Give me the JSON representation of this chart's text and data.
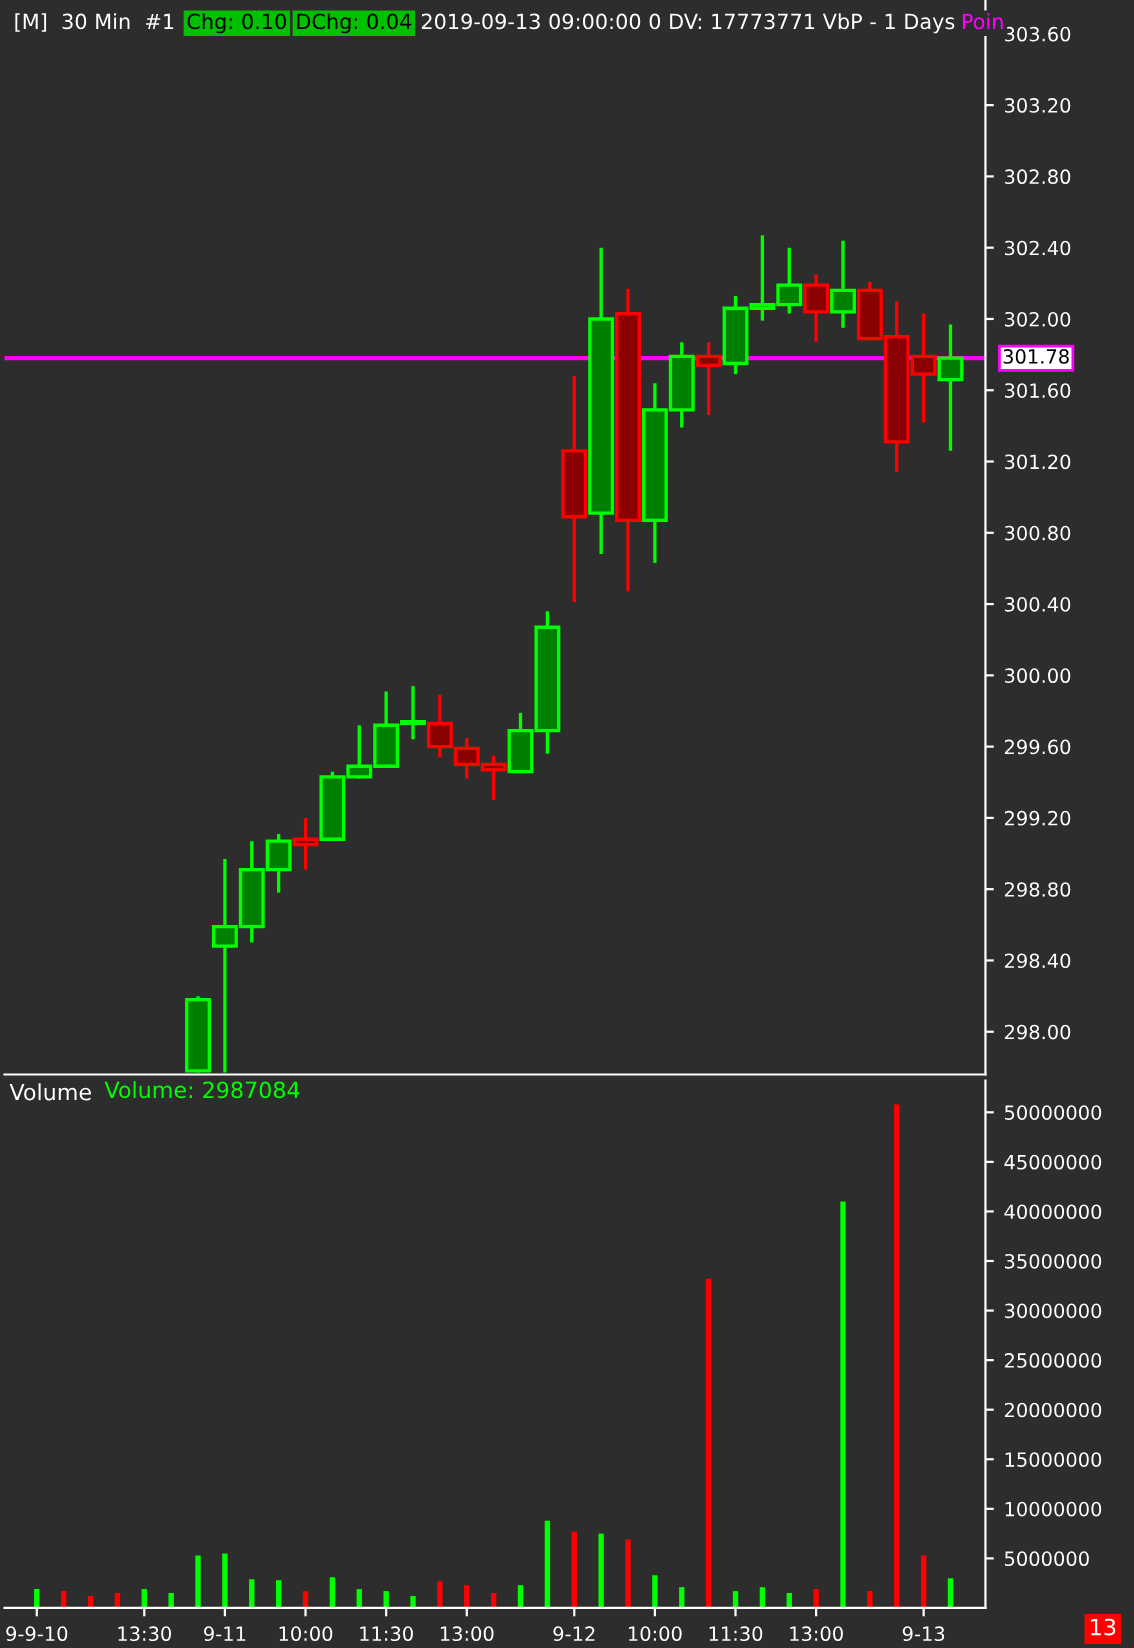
{
  "chart_data": [
    {
      "type": "candlestick",
      "title": "[M]  30 Min  #1",
      "annotations": [
        "Chg: 0.10",
        "DChg: 0.04",
        "2019-09-13 09:00:00 0 DV: 17773771 VbP - 1 Days",
        "Poin",
        "13"
      ],
      "ohlc": [
        null,
        null,
        null,
        null,
        null,
        null,
        [
          297.78,
          298.19,
          297.78,
          298.18
        ],
        [
          298.48,
          298.96,
          297.78,
          298.59
        ],
        [
          298.59,
          299.06,
          298.51,
          298.91
        ],
        [
          298.91,
          299.1,
          298.79,
          299.07
        ],
        [
          299.08,
          299.19,
          298.92,
          299.05
        ],
        [
          299.08,
          299.45,
          299.08,
          299.43
        ],
        [
          299.43,
          299.71,
          299.43,
          299.49
        ],
        [
          299.49,
          299.9,
          299.49,
          299.72
        ],
        [
          299.73,
          299.93,
          299.65,
          299.74
        ],
        [
          299.73,
          299.88,
          299.55,
          299.6
        ],
        [
          299.59,
          299.64,
          299.43,
          299.5
        ],
        [
          299.5,
          299.54,
          299.31,
          299.47
        ],
        [
          299.46,
          299.78,
          299.46,
          299.69
        ],
        [
          299.69,
          300.35,
          299.57,
          300.27
        ],
        [
          301.26,
          301.67,
          300.42,
          300.89
        ],
        [
          300.91,
          302.39,
          300.69,
          302.0
        ],
        [
          302.03,
          302.16,
          300.48,
          300.87
        ],
        [
          300.87,
          301.63,
          300.64,
          301.49
        ],
        [
          301.49,
          301.86,
          301.4,
          301.79
        ],
        [
          301.79,
          301.86,
          301.47,
          301.74
        ],
        [
          301.75,
          302.12,
          301.7,
          302.06
        ],
        [
          302.06,
          302.46,
          302.0,
          302.08
        ],
        [
          302.08,
          302.39,
          302.04,
          302.19
        ],
        [
          302.19,
          302.24,
          301.88,
          302.04
        ],
        [
          302.04,
          302.43,
          301.96,
          302.16
        ],
        [
          302.16,
          302.2,
          301.89,
          301.89
        ],
        [
          301.9,
          302.09,
          301.15,
          301.31
        ],
        [
          301.79,
          302.02,
          301.43,
          301.69
        ],
        [
          301.66,
          301.96,
          301.27,
          301.78
        ]
      ],
      "ylim": [
        297.76,
        303.79
      ],
      "yticks": [
        {
          "value": 298.0,
          "label": "298.00"
        },
        {
          "value": 298.4,
          "label": "298.40"
        },
        {
          "value": 298.8,
          "label": "298.80"
        },
        {
          "value": 299.2,
          "label": "299.20"
        },
        {
          "value": 299.6,
          "label": "299.60"
        },
        {
          "value": 300.0,
          "label": "300.00"
        },
        {
          "value": 300.4,
          "label": "300.40"
        },
        {
          "value": 300.8,
          "label": "300.80"
        },
        {
          "value": 301.2,
          "label": "301.20"
        },
        {
          "value": 301.6,
          "label": "301.60"
        },
        {
          "value": 302.0,
          "label": "302.00"
        },
        {
          "value": 302.4,
          "label": "302.40"
        },
        {
          "value": 302.8,
          "label": "302.80"
        },
        {
          "value": 303.2,
          "label": "303.20"
        },
        {
          "value": 303.6,
          "label": "303.60"
        }
      ],
      "ref_lines": [
        {
          "axis": "y",
          "value": 301.78,
          "label": "301.78",
          "color": "#ff00ff"
        }
      ],
      "tick_labels": "y",
      "grid": false
    },
    {
      "type": "bar",
      "title": "Volume",
      "annotations": [
        "Volume: 2987084"
      ],
      "categories": [
        "9-9-10",
        null,
        null,
        null,
        "13:30",
        null,
        null,
        "9-11",
        null,
        null,
        "10:00",
        null,
        null,
        "11:30",
        null,
        null,
        "13:00",
        null,
        null,
        null,
        "9-12",
        null,
        null,
        "10:00",
        null,
        null,
        "11:30",
        null,
        null,
        "13:00",
        null,
        null,
        null,
        "9-13",
        null
      ],
      "values": [
        1900000,
        1700000,
        1200000,
        1500000,
        1900000,
        1500000,
        5300000,
        5500000,
        2900000,
        2800000,
        1700000,
        3100000,
        1900000,
        1700000,
        1200000,
        2700000,
        2300000,
        1500000,
        2300000,
        8800000,
        7700000,
        7500000,
        6900000,
        3300000,
        2100000,
        33200000,
        1700000,
        2100000,
        1500000,
        1900000,
        41000000,
        1700000,
        50800000,
        5300000,
        3000000
      ],
      "colors": [
        "#00ff00",
        "#ff0000",
        "#ff0000",
        "#ff0000",
        "#00ff00",
        "#00ff00",
        "#00ff00",
        "#00ff00",
        "#00ff00",
        "#00ff00",
        "#ff0000",
        "#00ff00",
        "#00ff00",
        "#00ff00",
        "#00ff00",
        "#ff0000",
        "#ff0000",
        "#ff0000",
        "#00ff00",
        "#00ff00",
        "#ff0000",
        "#00ff00",
        "#ff0000",
        "#00ff00",
        "#00ff00",
        "#ff0000",
        "#00ff00",
        "#00ff00",
        "#00ff00",
        "#ff0000",
        "#00ff00",
        "#ff0000",
        "#ff0000",
        "#ff0000",
        "#00ff00"
      ],
      "ylim": [
        0,
        53200000
      ],
      "yticks": [
        5000000,
        10000000,
        15000000,
        20000000,
        25000000,
        30000000,
        35000000,
        40000000,
        45000000,
        50000000
      ],
      "grid": false
    }
  ]
}
